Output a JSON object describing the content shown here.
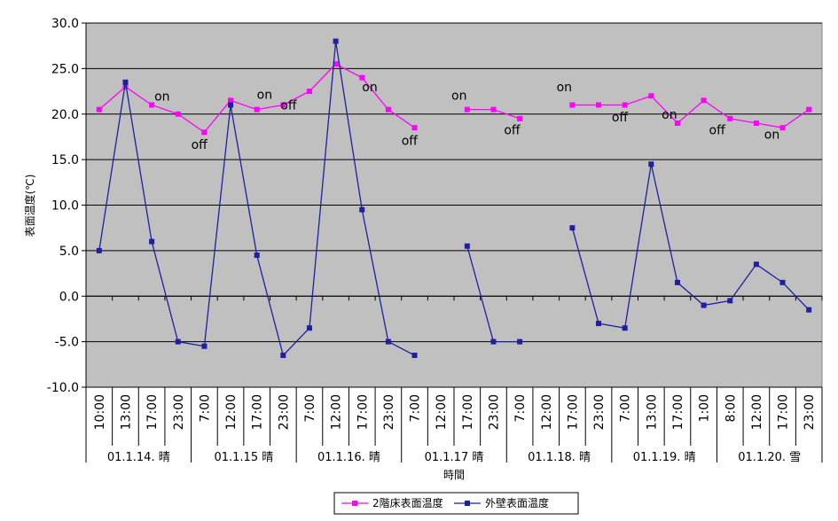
{
  "chart_data": {
    "type": "line",
    "ylabel": "表面温度(℃)",
    "xlabel": "時間",
    "ylim": [
      -10,
      30
    ],
    "yticks": [
      "30.0",
      "25.0",
      "20.0",
      "15.0",
      "10.0",
      "5.0",
      "0.0",
      "-5.0",
      "-10.0"
    ],
    "grid": true,
    "legend_position": "bottom",
    "categories": [
      "10:00",
      "13:00",
      "17:00",
      "23:00",
      "7:00",
      "12:00",
      "17:00",
      "23:00",
      "7:00",
      "12:00",
      "17:00",
      "23:00",
      "7:00",
      "12:00",
      "17:00",
      "23:00",
      "7:00",
      "12:00",
      "17:00",
      "23:00",
      "7:00",
      "13:00",
      "17:00",
      "1:00",
      "8:00",
      "12:00",
      "17:00",
      "23:00"
    ],
    "groups": [
      {
        "label": "01.1.14. 晴",
        "count": 4
      },
      {
        "label": "01.1.15 晴",
        "count": 4
      },
      {
        "label": "01.1.16. 晴",
        "count": 4
      },
      {
        "label": "01.1.17 晴",
        "count": 4
      },
      {
        "label": "01.1.18. 晴",
        "count": 4
      },
      {
        "label": "01.1.19. 晴",
        "count": 4
      },
      {
        "label": "01.1.20. 雪",
        "count": 4
      }
    ],
    "series": [
      {
        "name": "2階床表面温度",
        "color": "#ff00ff",
        "values": [
          20.5,
          23.0,
          21.0,
          20.0,
          18.0,
          21.5,
          20.5,
          21.0,
          22.5,
          25.5,
          24.0,
          20.5,
          18.5,
          null,
          20.5,
          20.5,
          19.5,
          null,
          21.0,
          21.0,
          21.0,
          22.0,
          19.0,
          21.5,
          19.5,
          19.0,
          18.5,
          20.5
        ]
      },
      {
        "name": "外壁表面温度",
        "color": "#1f1fa0",
        "values": [
          5.0,
          23.5,
          6.0,
          -5.0,
          -5.5,
          21.0,
          4.5,
          -6.5,
          -3.5,
          28.0,
          9.5,
          -5.0,
          -6.5,
          null,
          5.5,
          -5.0,
          -5.0,
          null,
          7.5,
          -3.0,
          -3.5,
          14.5,
          1.5,
          -1.0,
          -0.5,
          3.5,
          1.5,
          -1.5
        ]
      }
    ],
    "annotations": [
      {
        "text": "on",
        "index": 2.6,
        "y": 21.5
      },
      {
        "text": "off",
        "index": 4.0,
        "y": 16.2
      },
      {
        "text": "on",
        "index": 6.5,
        "y": 21.7
      },
      {
        "text": "off",
        "index": 7.4,
        "y": 20.5
      },
      {
        "text": "on",
        "index": 10.5,
        "y": 22.5
      },
      {
        "text": "off",
        "index": 12.0,
        "y": 16.6
      },
      {
        "text": "on",
        "index": 13.9,
        "y": 21.6
      },
      {
        "text": "off",
        "index": 15.9,
        "y": 17.8
      },
      {
        "text": "on",
        "index": 17.9,
        "y": 22.5
      },
      {
        "text": "off",
        "index": 20.0,
        "y": 19.2
      },
      {
        "text": "on",
        "index": 21.9,
        "y": 19.5
      },
      {
        "text": "off",
        "index": 23.7,
        "y": 17.8
      },
      {
        "text": "on",
        "index": 25.8,
        "y": 17.3
      }
    ]
  }
}
